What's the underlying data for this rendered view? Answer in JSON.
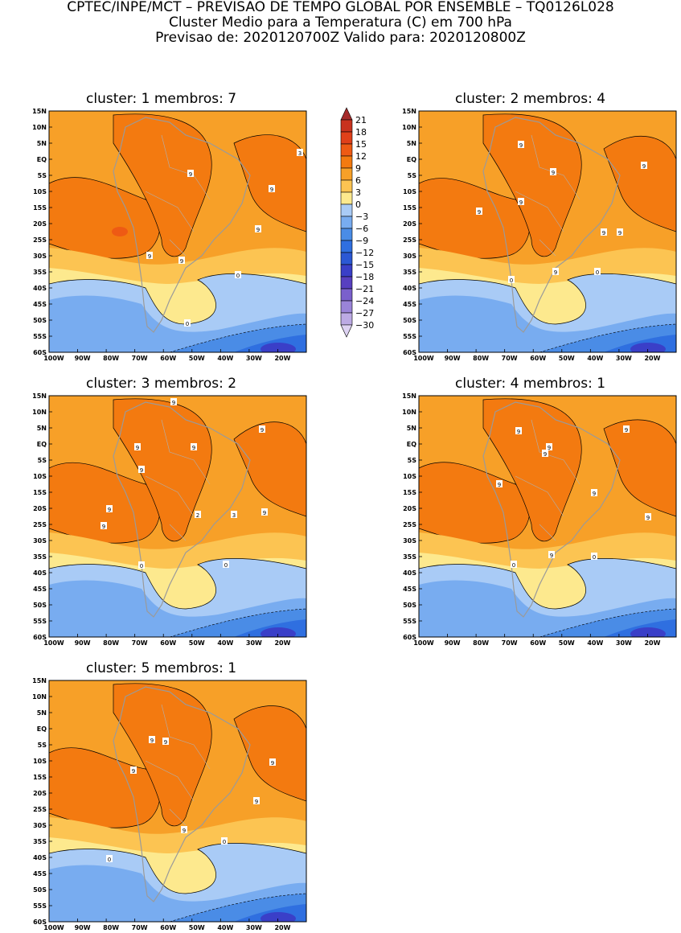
{
  "header": {
    "line1": "CPTEC/INPE/MCT – PREVISAO DE TEMPO GLOBAL POR ENSEMBLE – TQ0126L028",
    "line2": "Cluster Medio para a Temperatura (C) em 700 hPa",
    "line3": "Previsao de: 2020120700Z    Valido para: 2020120800Z"
  },
  "lat_labels": [
    "15N",
    "10N",
    "5N",
    "EQ",
    "5S",
    "10S",
    "15S",
    "20S",
    "25S",
    "30S",
    "35S",
    "40S",
    "45S",
    "50S",
    "55S",
    "60S"
  ],
  "lon_labels": [
    "100W",
    "90W",
    "80W",
    "70W",
    "60W",
    "50W",
    "40W",
    "30W",
    "20W"
  ],
  "panels": [
    {
      "title": "cluster:  1   membros:  7",
      "contour_labels": [
        "9",
        "9",
        "9",
        "9",
        "9",
        "3",
        "0",
        "0"
      ]
    },
    {
      "title": "cluster:  2   membros:  4",
      "contour_labels": [
        "9",
        "9",
        "9",
        "9",
        "9",
        "9",
        "9",
        "9",
        "0",
        "0"
      ]
    },
    {
      "title": "cluster:  3   membros:  2",
      "contour_labels": [
        "9",
        "9",
        "9",
        "9",
        "9",
        "9",
        "9",
        "3",
        "2",
        "9",
        "0",
        "0"
      ]
    },
    {
      "title": "cluster:  4   membros:  1",
      "contour_labels": [
        "9",
        "9",
        "9",
        "9",
        "9",
        "9",
        "9",
        "9",
        "0",
        "0"
      ]
    },
    {
      "title": "cluster:  5   membros:  1",
      "contour_labels": [
        "9",
        "9",
        "9",
        "9",
        "9",
        "9",
        "0",
        "0"
      ]
    }
  ],
  "colorbar": {
    "labels": [
      "21",
      "18",
      "15",
      "12",
      "9",
      "6",
      "3",
      "0",
      "−3",
      "−6",
      "−9",
      "−12",
      "−15",
      "−18",
      "−21",
      "−24",
      "−27",
      "−30"
    ],
    "colors": [
      "#a52a2a",
      "#c8321e",
      "#e0401a",
      "#ee5a14",
      "#f37a10",
      "#f7a028",
      "#fcc452",
      "#fde98e",
      "#a9cbf6",
      "#78acf0",
      "#4a8ce6",
      "#2f6fe0",
      "#2b58d4",
      "#3a3fc8",
      "#5840c0",
      "#7a60cc",
      "#9a84d8",
      "#bcaae4",
      "#ddd2f2"
    ]
  }
}
